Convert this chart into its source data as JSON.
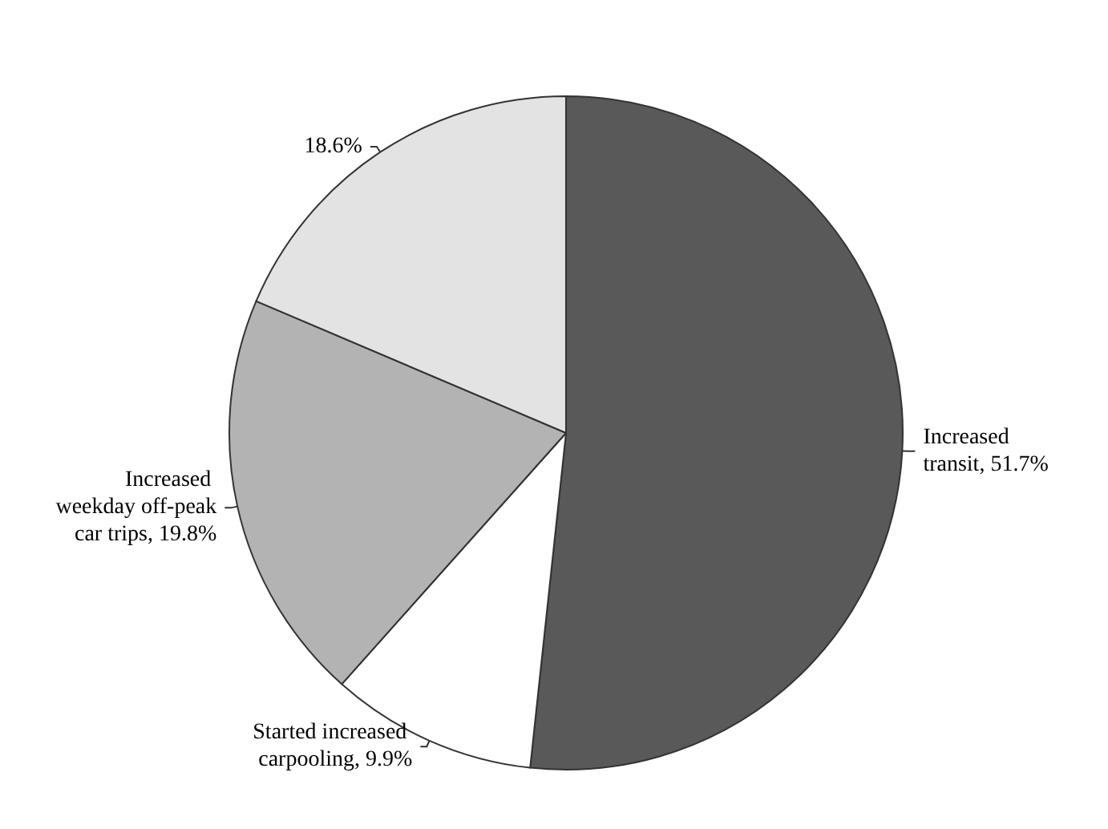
{
  "chart_data": {
    "type": "pie",
    "categories": [
      "Increased transit",
      "Started increased carpooling",
      "Increased weekday off-peak car trips",
      null
    ],
    "values": [
      51.7,
      9.9,
      19.8,
      18.6
    ],
    "value_labels": [
      "51.7%",
      "9.9%",
      "19.8%",
      "18.6%"
    ],
    "colors": [
      "#595959",
      "#ffffff",
      "#b3b3b3",
      "#e3e3e3"
    ],
    "legend": false
  }
}
